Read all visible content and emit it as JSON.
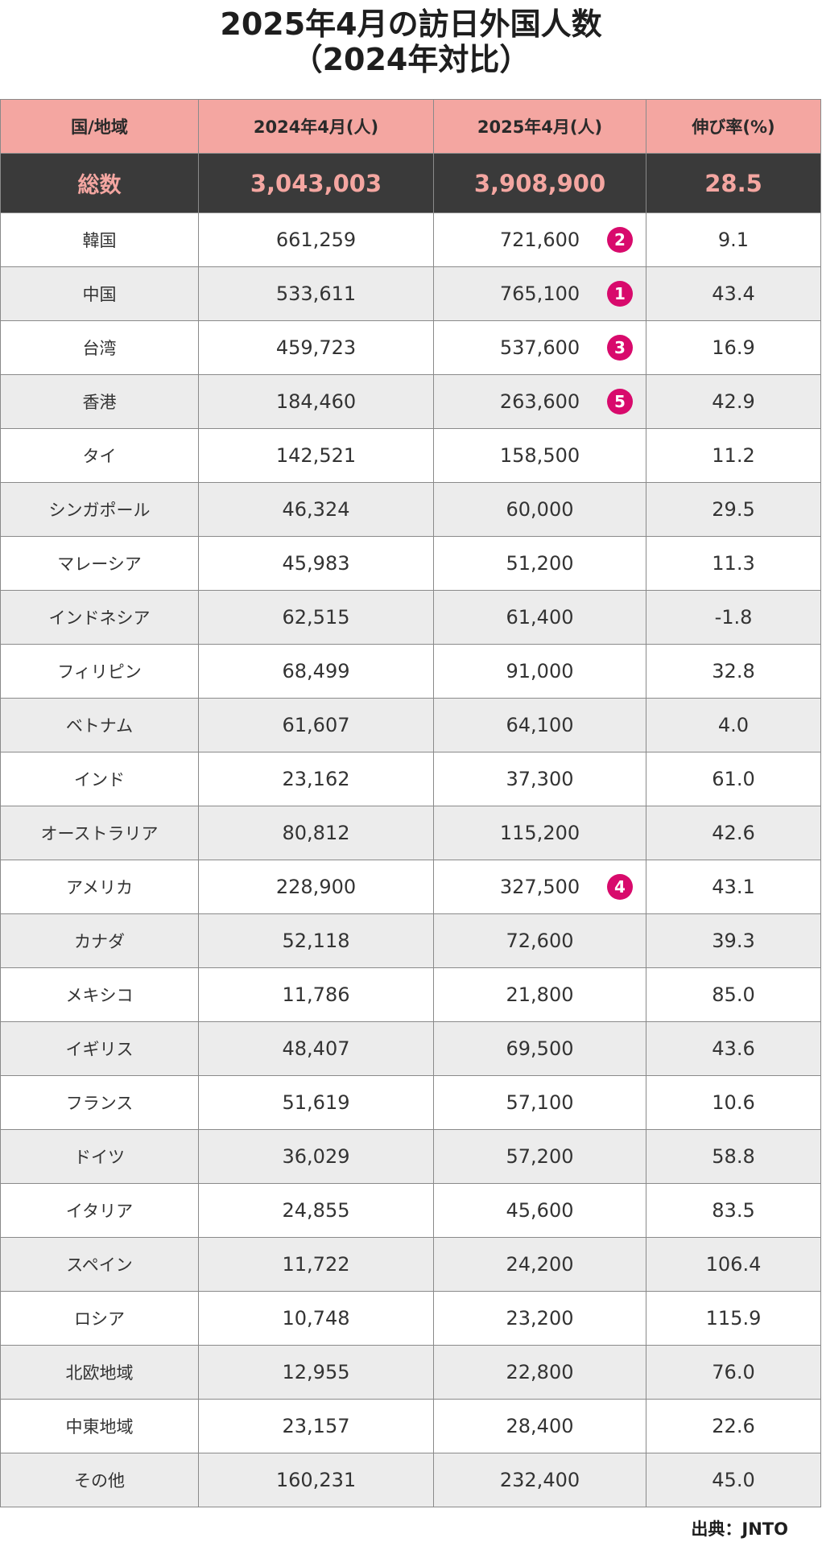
{
  "title": {
    "line1": "2025年4月の訪日外国人数",
    "line2": "（2024年対比）"
  },
  "headers": {
    "region": "国/地域",
    "y2024": "2024年4月(人)",
    "y2025": "2025年4月(人)",
    "growth": "伸び率(%)"
  },
  "total": {
    "label": "総数",
    "y2024": "3,043,003",
    "y2025": "3,908,900",
    "growth": "28.5"
  },
  "rows": [
    {
      "name": "韓国",
      "y2024": "661,259",
      "y2025": "721,600",
      "growth": "9.1",
      "rank": "2"
    },
    {
      "name": "中国",
      "y2024": "533,611",
      "y2025": "765,100",
      "growth": "43.4",
      "rank": "1"
    },
    {
      "name": "台湾",
      "y2024": "459,723",
      "y2025": "537,600",
      "growth": "16.9",
      "rank": "3"
    },
    {
      "name": "香港",
      "y2024": "184,460",
      "y2025": "263,600",
      "growth": "42.9",
      "rank": "5"
    },
    {
      "name": "タイ",
      "y2024": "142,521",
      "y2025": "158,500",
      "growth": "11.2"
    },
    {
      "name": "シンガポール",
      "y2024": "46,324",
      "y2025": "60,000",
      "growth": "29.5"
    },
    {
      "name": "マレーシア",
      "y2024": "45,983",
      "y2025": "51,200",
      "growth": "11.3"
    },
    {
      "name": "インドネシア",
      "y2024": "62,515",
      "y2025": "61,400",
      "growth": "-1.8"
    },
    {
      "name": "フィリピン",
      "y2024": "68,499",
      "y2025": "91,000",
      "growth": "32.8"
    },
    {
      "name": "ベトナム",
      "y2024": "61,607",
      "y2025": "64,100",
      "growth": "4.0"
    },
    {
      "name": "インド",
      "y2024": "23,162",
      "y2025": "37,300",
      "growth": "61.0"
    },
    {
      "name": "オーストラリア",
      "y2024": "80,812",
      "y2025": "115,200",
      "growth": "42.6"
    },
    {
      "name": "アメリカ",
      "y2024": "228,900",
      "y2025": "327,500",
      "growth": "43.1",
      "rank": "4"
    },
    {
      "name": "カナダ",
      "y2024": "52,118",
      "y2025": "72,600",
      "growth": "39.3"
    },
    {
      "name": "メキシコ",
      "y2024": "11,786",
      "y2025": "21,800",
      "growth": "85.0"
    },
    {
      "name": "イギリス",
      "y2024": "48,407",
      "y2025": "69,500",
      "growth": "43.6"
    },
    {
      "name": "フランス",
      "y2024": "51,619",
      "y2025": "57,100",
      "growth": "10.6"
    },
    {
      "name": "ドイツ",
      "y2024": "36,029",
      "y2025": "57,200",
      "growth": "58.8"
    },
    {
      "name": "イタリア",
      "y2024": "24,855",
      "y2025": "45,600",
      "growth": "83.5"
    },
    {
      "name": "スペイン",
      "y2024": "11,722",
      "y2025": "24,200",
      "growth": "106.4"
    },
    {
      "name": "ロシア",
      "y2024": "10,748",
      "y2025": "23,200",
      "growth": "115.9"
    },
    {
      "name": "北欧地域",
      "y2024": "12,955",
      "y2025": "22,800",
      "growth": "76.0"
    },
    {
      "name": "中東地域",
      "y2024": "23,157",
      "y2025": "28,400",
      "growth": "22.6"
    },
    {
      "name": "その他",
      "y2024": "160,231",
      "y2025": "232,400",
      "growth": "45.0"
    }
  ],
  "source": "出典：JNTO",
  "colors": {
    "header_bg": "#f4a6a1",
    "total_bg": "#3a3a3a",
    "total_text": "#f4a6a1",
    "rank_badge": "#d80a6c",
    "row_alt": "#ececec"
  }
}
